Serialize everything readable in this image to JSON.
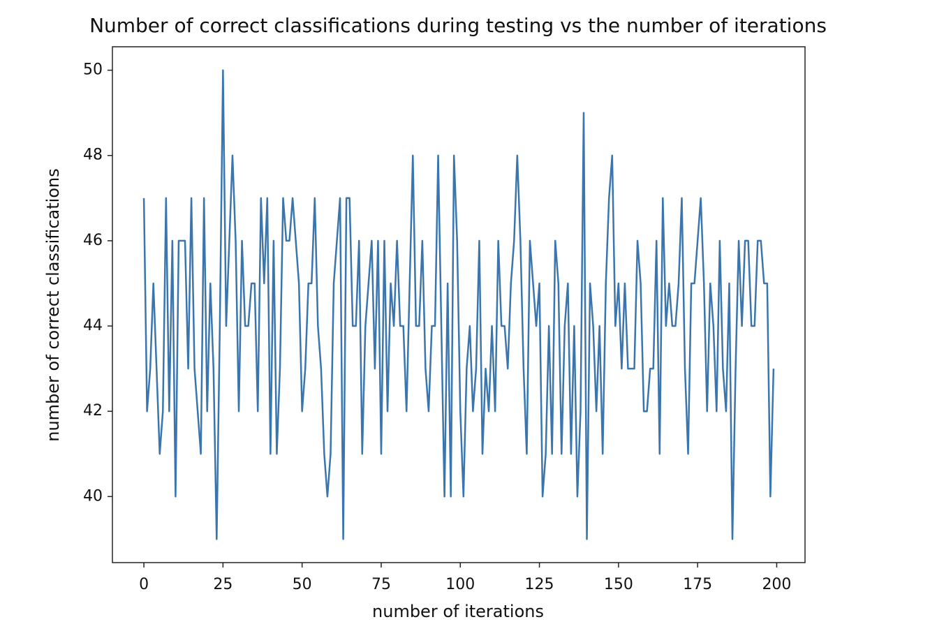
{
  "chart_data": {
    "type": "line",
    "title": "Number of correct classifications during testing vs the number of iterations",
    "x_label": "number of iterations",
    "y_label": "number of correct classifications",
    "x": [
      0,
      1,
      2,
      3,
      4,
      5,
      6,
      7,
      8,
      9,
      10,
      11,
      12,
      13,
      14,
      15,
      16,
      17,
      18,
      19,
      20,
      21,
      22,
      23,
      24,
      25,
      26,
      27,
      28,
      29,
      30,
      31,
      32,
      33,
      34,
      35,
      36,
      37,
      38,
      39,
      40,
      41,
      42,
      43,
      44,
      45,
      46,
      47,
      48,
      49,
      50,
      51,
      52,
      53,
      54,
      55,
      56,
      57,
      58,
      59,
      60,
      61,
      62,
      63,
      64,
      65,
      66,
      67,
      68,
      69,
      70,
      71,
      72,
      73,
      74,
      75,
      76,
      77,
      78,
      79,
      80,
      81,
      82,
      83,
      84,
      85,
      86,
      87,
      88,
      89,
      90,
      91,
      92,
      93,
      94,
      95,
      96,
      97,
      98,
      99,
      100,
      101,
      102,
      103,
      104,
      105,
      106,
      107,
      108,
      109,
      110,
      111,
      112,
      113,
      114,
      115,
      116,
      117,
      118,
      119,
      120,
      121,
      122,
      123,
      124,
      125,
      126,
      127,
      128,
      129,
      130,
      131,
      132,
      133,
      134,
      135,
      136,
      137,
      138,
      139,
      140,
      141,
      142,
      143,
      144,
      145,
      146,
      147,
      148,
      149,
      150,
      151,
      152,
      153,
      154,
      155,
      156,
      157,
      158,
      159,
      160,
      161,
      162,
      163,
      164,
      165,
      166,
      167,
      168,
      169,
      170,
      171,
      172,
      173,
      174,
      175,
      176,
      177,
      178,
      179,
      180,
      181,
      182,
      183,
      184,
      185,
      186,
      187,
      188,
      189,
      190,
      191,
      192,
      193,
      194,
      195,
      196,
      197,
      198,
      199
    ],
    "series": [
      {
        "color": "#3a75ae",
        "values": [
          47,
          42,
          43,
          45,
          43,
          41,
          42,
          47,
          42,
          46,
          40,
          46,
          46,
          46,
          43,
          47,
          43,
          42,
          41,
          47,
          42,
          45,
          43,
          39,
          44,
          50,
          44,
          46,
          48,
          46,
          42,
          46,
          44,
          44,
          45,
          45,
          42,
          47,
          45,
          47,
          41,
          46,
          41,
          43,
          47,
          46,
          46,
          47,
          46,
          45,
          42,
          43,
          45,
          45,
          47,
          44,
          43,
          41,
          40,
          41,
          45,
          46,
          47,
          39,
          47,
          47,
          44,
          44,
          46,
          41,
          44,
          45,
          46,
          43,
          46,
          41,
          46,
          42,
          45,
          44,
          46,
          44,
          44,
          42,
          45,
          48,
          44,
          44,
          46,
          43,
          42,
          44,
          44,
          48,
          44,
          40,
          45,
          40,
          48,
          46,
          42,
          40,
          43,
          44,
          42,
          43,
          46,
          41,
          43,
          42,
          44,
          42,
          46,
          44,
          44,
          43,
          45,
          46,
          48,
          46,
          43,
          41,
          46,
          45,
          44,
          45,
          40,
          41,
          44,
          41,
          46,
          45,
          41,
          44,
          45,
          41,
          44,
          40,
          42,
          49,
          39,
          45,
          44,
          42,
          44,
          41,
          45,
          47,
          48,
          44,
          45,
          43,
          45,
          43,
          43,
          43,
          46,
          45,
          42,
          42,
          43,
          43,
          46,
          41,
          47,
          44,
          45,
          44,
          44,
          45,
          47,
          43,
          41,
          45,
          45,
          46,
          47,
          45,
          42,
          45,
          44,
          42,
          46,
          43,
          42,
          45,
          39,
          43,
          46,
          44,
          46,
          46,
          44,
          44,
          46,
          46,
          45,
          45,
          40,
          43
        ]
      }
    ],
    "xlim": [
      -9.95,
      208.95
    ],
    "ylim": [
      38.45,
      50.55
    ],
    "xticks": [
      0,
      25,
      50,
      75,
      100,
      125,
      150,
      175,
      200
    ],
    "yticks": [
      40,
      42,
      44,
      46,
      48,
      50
    ],
    "grid": false
  }
}
